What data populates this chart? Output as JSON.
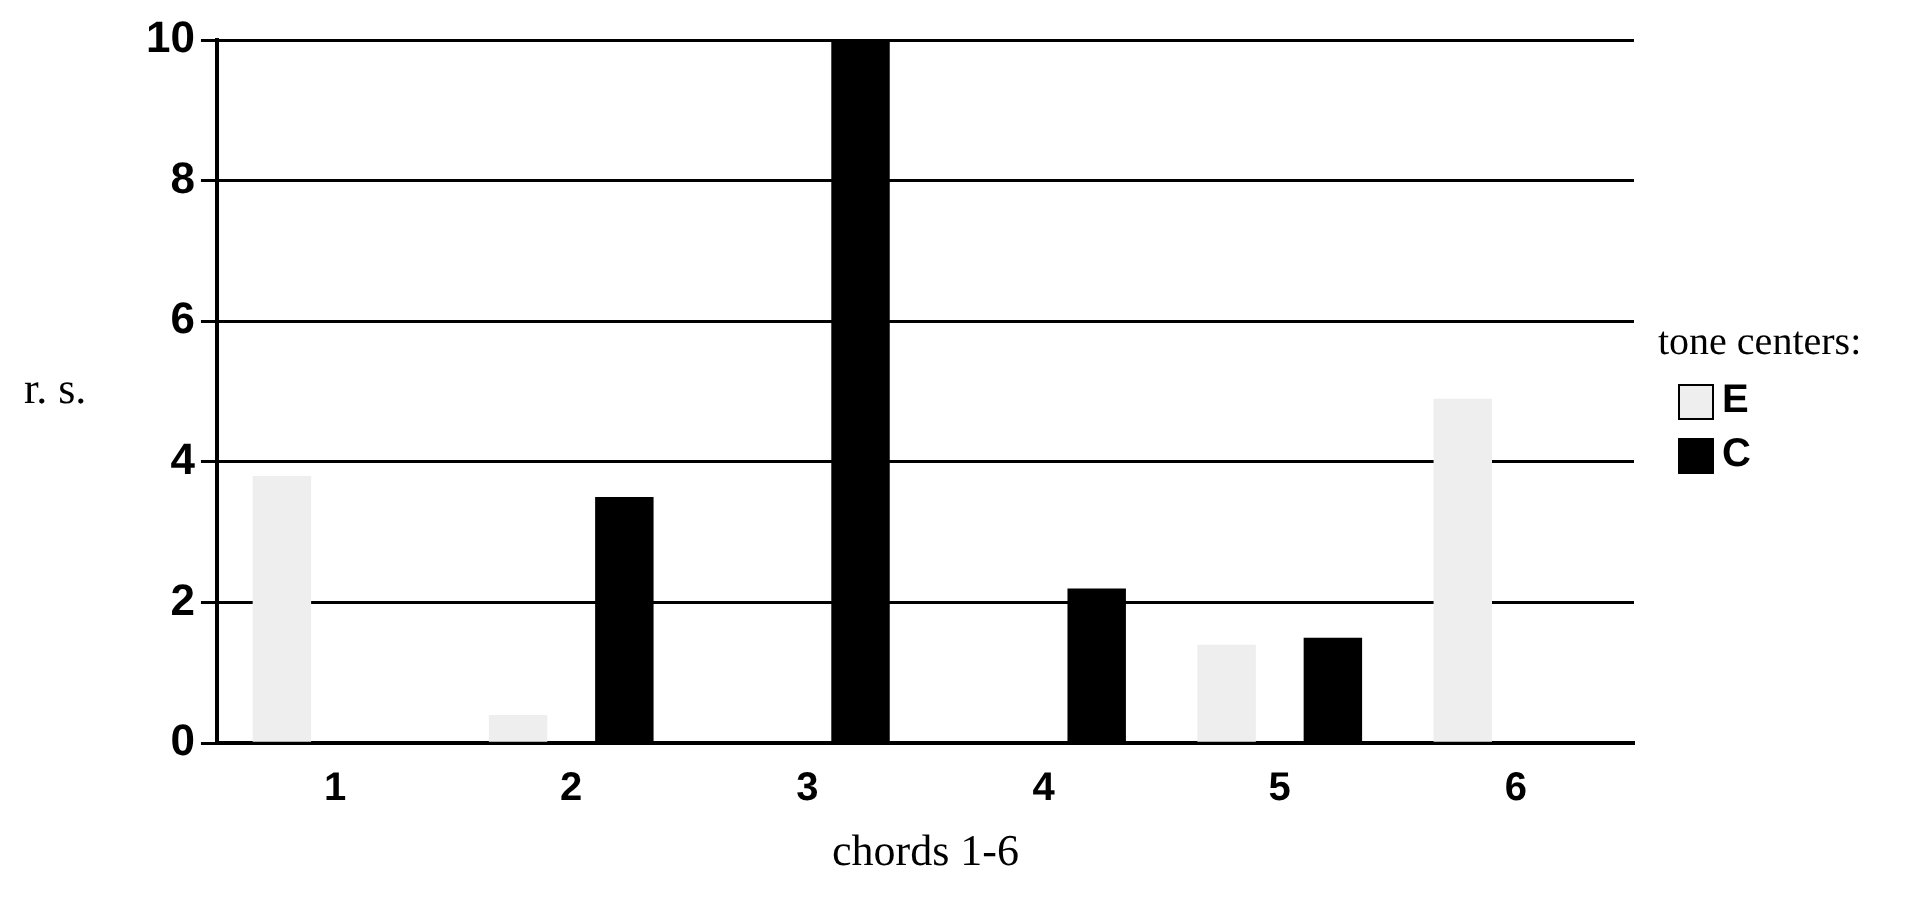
{
  "chart_data": {
    "type": "bar",
    "xlabel": "chords 1-6",
    "ylabel": "r. s.",
    "legend_title": "tone centers:",
    "categories": [
      "1",
      "2",
      "3",
      "4",
      "5",
      "6"
    ],
    "series": [
      {
        "name": "E",
        "color": "#eeeeee",
        "values": [
          3.8,
          0.4,
          0,
          0,
          1.4,
          4.9
        ]
      },
      {
        "name": "C",
        "color": "#000000",
        "values": [
          0,
          3.5,
          10,
          2.2,
          1.5,
          0
        ]
      }
    ],
    "ylim": [
      0,
      10
    ],
    "yticks": [
      0,
      2,
      4,
      6,
      8,
      10
    ],
    "grid": "y",
    "legend": "right"
  }
}
